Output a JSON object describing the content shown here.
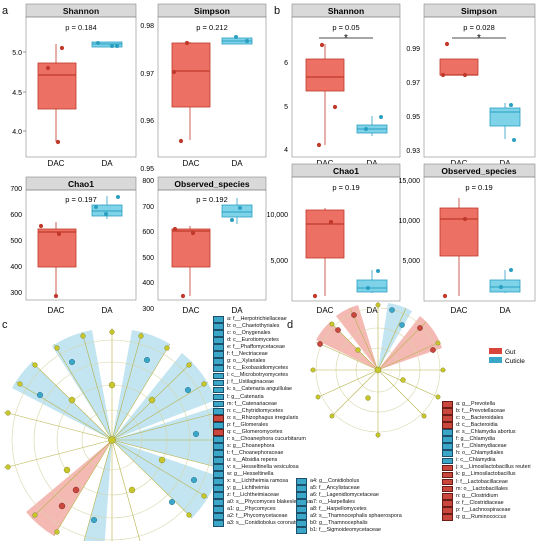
{
  "panels": {
    "a": {
      "label": "a",
      "plots": [
        {
          "title": "Shannon",
          "p_text": "p = 0.184",
          "yticks": [
            "5.0",
            "4.5",
            "4.0"
          ],
          "xlabels": [
            "DAC",
            "DA"
          ],
          "sig": ""
        },
        {
          "title": "Simpson",
          "p_text": "p = 0.212",
          "yticks": [
            "0.98",
            "0.97",
            "0.96",
            "0.95"
          ],
          "xlabels": [
            "DAC",
            "DA"
          ],
          "sig": ""
        },
        {
          "title": "Chao1",
          "p_text": "p = 0.197",
          "yticks": [
            "700",
            "600",
            "500",
            "400",
            "300"
          ],
          "xlabels": [
            "DAC",
            "DA"
          ],
          "sig": ""
        },
        {
          "title": "Observed_species",
          "p_text": "p = 0.192",
          "yticks": [
            "800",
            "700",
            "600",
            "500",
            "400",
            "300"
          ],
          "xlabels": [
            "DAC",
            "DA"
          ],
          "sig": ""
        }
      ]
    },
    "b": {
      "label": "b",
      "plots": [
        {
          "title": "Shannon",
          "p_text": "p = 0.05",
          "yticks": [
            "6",
            "5",
            "4"
          ],
          "xlabels": [
            "DAC",
            "DA"
          ],
          "sig": "*"
        },
        {
          "title": "Simpson",
          "p_text": "p = 0.028",
          "yticks": [
            "0.99",
            "0.97",
            "0.95",
            "0.93"
          ],
          "xlabels": [
            "DAC",
            "DA"
          ],
          "sig": "*"
        },
        {
          "title": "Chao1",
          "p_text": "p = 0.19",
          "yticks": [
            "10,000",
            "5,000"
          ],
          "xlabels": [
            "DAC",
            "DA"
          ],
          "sig": ""
        },
        {
          "title": "Observed_species",
          "p_text": "p = 0.19",
          "yticks": [
            "15,000",
            "10,000",
            "5,000"
          ],
          "xlabels": [
            "DAC",
            "DA"
          ],
          "sig": ""
        }
      ]
    },
    "c": {
      "label": "c",
      "legend_col1": [
        {
          "text": "a: f__Herpotrichiellaceae",
          "color": "blue"
        },
        {
          "text": "b: o__Chaetothyriales",
          "color": "blue"
        },
        {
          "text": "c: o__Onygenales",
          "color": "blue"
        },
        {
          "text": "d: c__Eurotiomycetes",
          "color": "blue"
        },
        {
          "text": "e: f__Phaffomycetaceae",
          "color": "blue"
        },
        {
          "text": "f: f__Nectriaceae",
          "color": "blue"
        },
        {
          "text": "g: o__Xylariales",
          "color": "blue"
        },
        {
          "text": "h: c__Exobasidiomycetes",
          "color": "blue"
        },
        {
          "text": "i: c__Microbotryomycetes",
          "color": "blue"
        },
        {
          "text": "j: f__Ustilaginaceae",
          "color": "blue"
        },
        {
          "text": "k: s__Catenaria anguillulae",
          "color": "blue"
        },
        {
          "text": "l: g__Catenaria",
          "color": "blue"
        },
        {
          "text": "m: f__Catenariaceae",
          "color": "blue"
        },
        {
          "text": "n: c__Chytridiomycetes",
          "color": "blue"
        },
        {
          "text": "o: s__Rhizophagus irregularis",
          "color": "red"
        },
        {
          "text": "p: f__Glomerales",
          "color": "blue"
        },
        {
          "text": "q: c__Glomeromycetes",
          "color": "red"
        },
        {
          "text": "r: s__Choanephora cucurbitarum",
          "color": "blue"
        },
        {
          "text": "s: g__Choanephora",
          "color": "blue"
        },
        {
          "text": "t: f__Choanephoraceae",
          "color": "blue"
        },
        {
          "text": "u: s__Absidia repens",
          "color": "blue"
        },
        {
          "text": "v: s__Hesseltinella vesiculosa",
          "color": "blue"
        },
        {
          "text": "w: g__Hesseltinella",
          "color": "blue"
        },
        {
          "text": "x: s__Lichtheimia ramosa",
          "color": "blue"
        },
        {
          "text": "y: g__Lichtheimia",
          "color": "blue"
        },
        {
          "text": "z: f__Lichtheimiaceae",
          "color": "blue"
        },
        {
          "text": "a0: s__Phycomyces blakesleeanus",
          "color": "blue"
        },
        {
          "text": "a1: g__Phycomyces",
          "color": "blue"
        },
        {
          "text": "a2: f__Phycomycetaceae",
          "color": "blue"
        },
        {
          "text": "a3: s__Conidiobolus coronatus",
          "color": "blue"
        }
      ],
      "legend_col2": [
        {
          "text": "a4: g__Conidiobolus",
          "color": "blue"
        },
        {
          "text": "a5: f__Ancylistaceae",
          "color": "blue"
        },
        {
          "text": "a6: f__Lagenidiomycetaceae",
          "color": "blue"
        },
        {
          "text": "a7: o__Harpellales",
          "color": "blue"
        },
        {
          "text": "a8: f__Harpellomycetes",
          "color": "blue"
        },
        {
          "text": "a9: s__Thamnocephalis sphaerospora",
          "color": "blue"
        },
        {
          "text": "b0: g__Thamnocephalis",
          "color": "blue"
        },
        {
          "text": "b1: f__Sigmoideomycetaceae",
          "color": "blue"
        }
      ]
    },
    "d": {
      "label": "d",
      "groups": [
        {
          "name": "Gut",
          "color": "#d9453b"
        },
        {
          "name": "Cuticle",
          "color": "#3aa7c9"
        }
      ],
      "legend": [
        {
          "text": "a: g__Prevotella",
          "color": "red"
        },
        {
          "text": "b: f__Prevotellaceae",
          "color": "red"
        },
        {
          "text": "c: o__Bacteroidales",
          "color": "red"
        },
        {
          "text": "d: c__Bacteroidia",
          "color": "red"
        },
        {
          "text": "e: s__Chlamydia abortus",
          "color": "blue"
        },
        {
          "text": "f: g__Chlamydia",
          "color": "blue"
        },
        {
          "text": "g: f__Chlamydiaceae",
          "color": "blue"
        },
        {
          "text": "h: o__Chlamydiales",
          "color": "blue"
        },
        {
          "text": "i: c__Chlamydiia",
          "color": "blue"
        },
        {
          "text": "j: s__Limosilactobacillus reuteri",
          "color": "red"
        },
        {
          "text": "k: g__Limosilactobacillus",
          "color": "red"
        },
        {
          "text": "l: f__Lactobacillaceae",
          "color": "red"
        },
        {
          "text": "m: o__Lactobacillales",
          "color": "red"
        },
        {
          "text": "n: g__Clostridium",
          "color": "red"
        },
        {
          "text": "o: f__Clostridiaceae",
          "color": "red"
        },
        {
          "text": "p: f__Lachnospiraceae",
          "color": "red"
        },
        {
          "text": "q: g__Ruminococcus",
          "color": "red"
        }
      ]
    }
  },
  "colors": {
    "dac": "#ec7063",
    "dac_dark": "#c0392b",
    "da": "#7fd3e8",
    "da_dark": "#2a9fc0",
    "title_bg": "#d9d9d9",
    "node": "#c7c62b"
  }
}
